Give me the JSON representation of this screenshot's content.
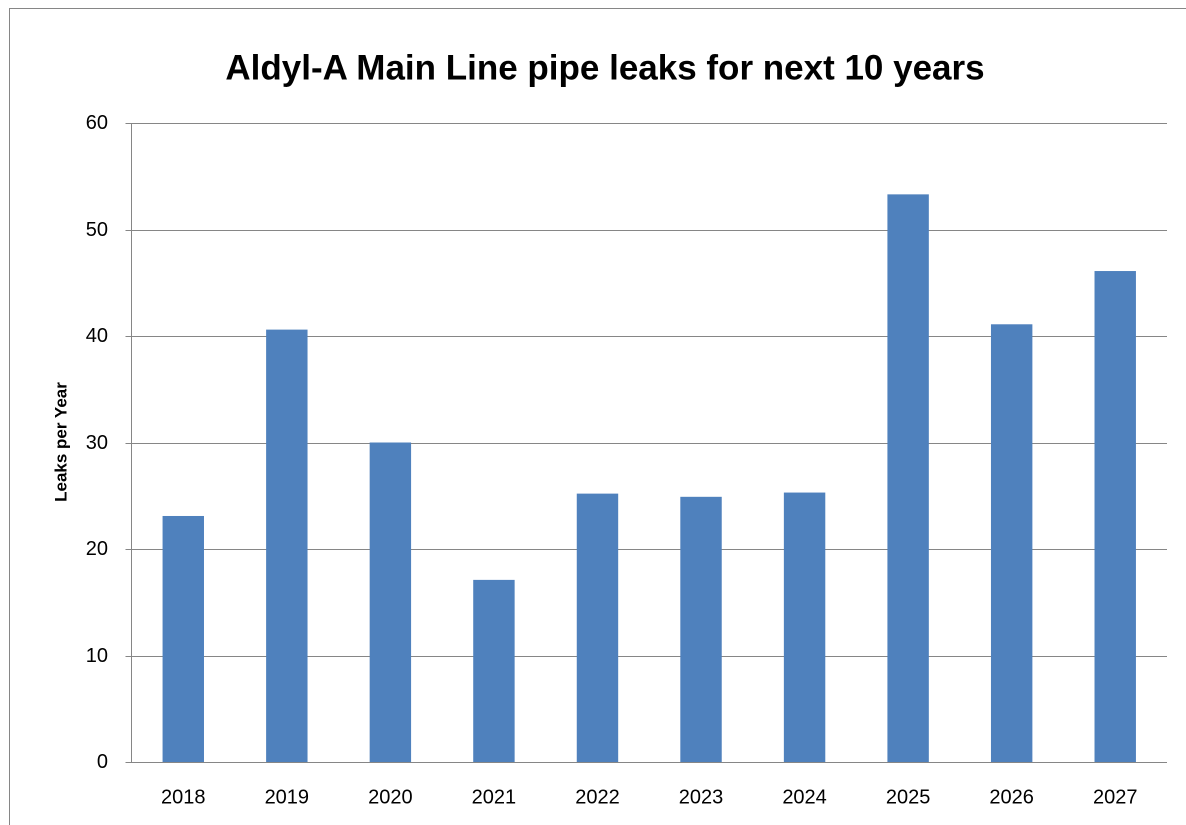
{
  "chart_data": {
    "type": "bar",
    "title": "Aldyl-A Main Line pipe leaks for next 10 years",
    "y_label": "Leaks per Year",
    "categories": [
      "2018",
      "2019",
      "2020",
      "2021",
      "2022",
      "2023",
      "2024",
      "2025",
      "2026",
      "2027"
    ],
    "values": [
      23.1,
      40.6,
      30.0,
      17.1,
      25.2,
      24.9,
      25.3,
      53.3,
      41.1,
      46.1
    ],
    "color": "#4f81bd",
    "ylim": [
      0,
      60
    ],
    "yticks": [
      0,
      10,
      20,
      30,
      40,
      50,
      60
    ],
    "grid": true
  }
}
